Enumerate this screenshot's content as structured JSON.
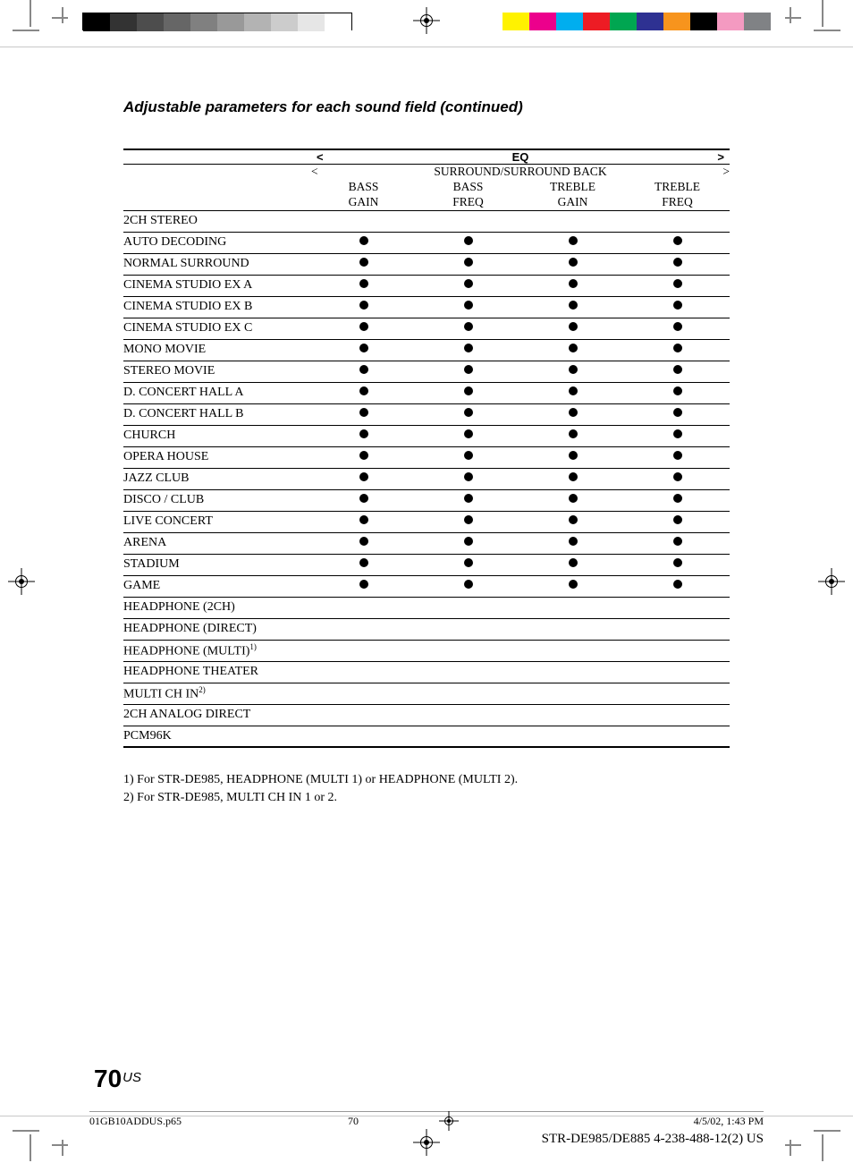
{
  "title": "Adjustable parameters for each sound field (continued)",
  "colorBarsLeftBorder": "#000000",
  "colorBarsLeft": [
    "#000000",
    "#333333",
    "#4d4d4d",
    "#666666",
    "#808080",
    "#999999",
    "#b3b3b3",
    "#cccccc",
    "#e6e6e6",
    "#ffffff"
  ],
  "colorBarsRight": [
    "#fff200",
    "#ec008c",
    "#00aeef",
    "#ed1c24",
    "#00a651",
    "#2e3192",
    "#f7941d",
    "#000000",
    "#f49ac1",
    "#808285"
  ],
  "header": {
    "leftArrow": "<",
    "centerTitle": "EQ",
    "rightArrow": ">",
    "subLeftArrow": "<",
    "subCenter": "SURROUND/SURROUND BACK",
    "subRightArrow": ">",
    "cols": [
      {
        "l1": "BASS",
        "l2": "GAIN"
      },
      {
        "l1": "BASS",
        "l2": "FREQ"
      },
      {
        "l1": "TREBLE",
        "l2": "GAIN"
      },
      {
        "l1": "TREBLE",
        "l2": "FREQ"
      }
    ]
  },
  "rows": [
    {
      "name": "2CH STEREO",
      "sup": "",
      "dots": [
        false,
        false,
        false,
        false
      ]
    },
    {
      "name": "AUTO DECODING",
      "sup": "",
      "dots": [
        true,
        true,
        true,
        true
      ]
    },
    {
      "name": "NORMAL SURROUND",
      "sup": "",
      "dots": [
        true,
        true,
        true,
        true
      ]
    },
    {
      "name": "CINEMA STUDIO EX A",
      "sup": "",
      "dots": [
        true,
        true,
        true,
        true
      ]
    },
    {
      "name": "CINEMA STUDIO EX B",
      "sup": "",
      "dots": [
        true,
        true,
        true,
        true
      ]
    },
    {
      "name": "CINEMA STUDIO EX C",
      "sup": "",
      "dots": [
        true,
        true,
        true,
        true
      ]
    },
    {
      "name": "MONO MOVIE",
      "sup": "",
      "dots": [
        true,
        true,
        true,
        true
      ]
    },
    {
      "name": "STEREO MOVIE",
      "sup": "",
      "dots": [
        true,
        true,
        true,
        true
      ]
    },
    {
      "name": "D. CONCERT HALL A",
      "sup": "",
      "dots": [
        true,
        true,
        true,
        true
      ]
    },
    {
      "name": "D. CONCERT HALL B",
      "sup": "",
      "dots": [
        true,
        true,
        true,
        true
      ]
    },
    {
      "name": "CHURCH",
      "sup": "",
      "dots": [
        true,
        true,
        true,
        true
      ]
    },
    {
      "name": "OPERA HOUSE",
      "sup": "",
      "dots": [
        true,
        true,
        true,
        true
      ]
    },
    {
      "name": "JAZZ CLUB",
      "sup": "",
      "dots": [
        true,
        true,
        true,
        true
      ]
    },
    {
      "name": "DISCO / CLUB",
      "sup": "",
      "dots": [
        true,
        true,
        true,
        true
      ]
    },
    {
      "name": "LIVE CONCERT",
      "sup": "",
      "dots": [
        true,
        true,
        true,
        true
      ]
    },
    {
      "name": "ARENA",
      "sup": "",
      "dots": [
        true,
        true,
        true,
        true
      ]
    },
    {
      "name": "STADIUM",
      "sup": "",
      "dots": [
        true,
        true,
        true,
        true
      ]
    },
    {
      "name": "GAME",
      "sup": "",
      "dots": [
        true,
        true,
        true,
        true
      ]
    },
    {
      "name": "HEADPHONE (2CH)",
      "sup": "",
      "dots": [
        false,
        false,
        false,
        false
      ]
    },
    {
      "name": "HEADPHONE (DIRECT)",
      "sup": "",
      "dots": [
        false,
        false,
        false,
        false
      ]
    },
    {
      "name": "HEADPHONE (MULTI)",
      "sup": "1)",
      "dots": [
        false,
        false,
        false,
        false
      ]
    },
    {
      "name": "HEADPHONE THEATER",
      "sup": "",
      "dots": [
        false,
        false,
        false,
        false
      ]
    },
    {
      "name": "MULTI CH IN",
      "sup": "2)",
      "dots": [
        false,
        false,
        false,
        false
      ]
    },
    {
      "name": "2CH ANALOG DIRECT",
      "sup": "",
      "dots": [
        false,
        false,
        false,
        false
      ]
    },
    {
      "name": "PCM96K",
      "sup": "",
      "dots": [
        false,
        false,
        false,
        false
      ]
    }
  ],
  "footnotes": [
    "1) For STR-DE985, HEADPHONE (MULTI 1) or HEADPHONE (MULTI 2).",
    "2) For STR-DE985, MULTI CH IN 1 or 2."
  ],
  "pageNumber": "70",
  "pageSuffix": "US",
  "footer": {
    "file": "01GB10ADDUS.p65",
    "page": "70",
    "datetime": "4/5/02, 1:43 PM",
    "docId": "STR-DE985/DE885    4-238-488-12(2) US"
  }
}
